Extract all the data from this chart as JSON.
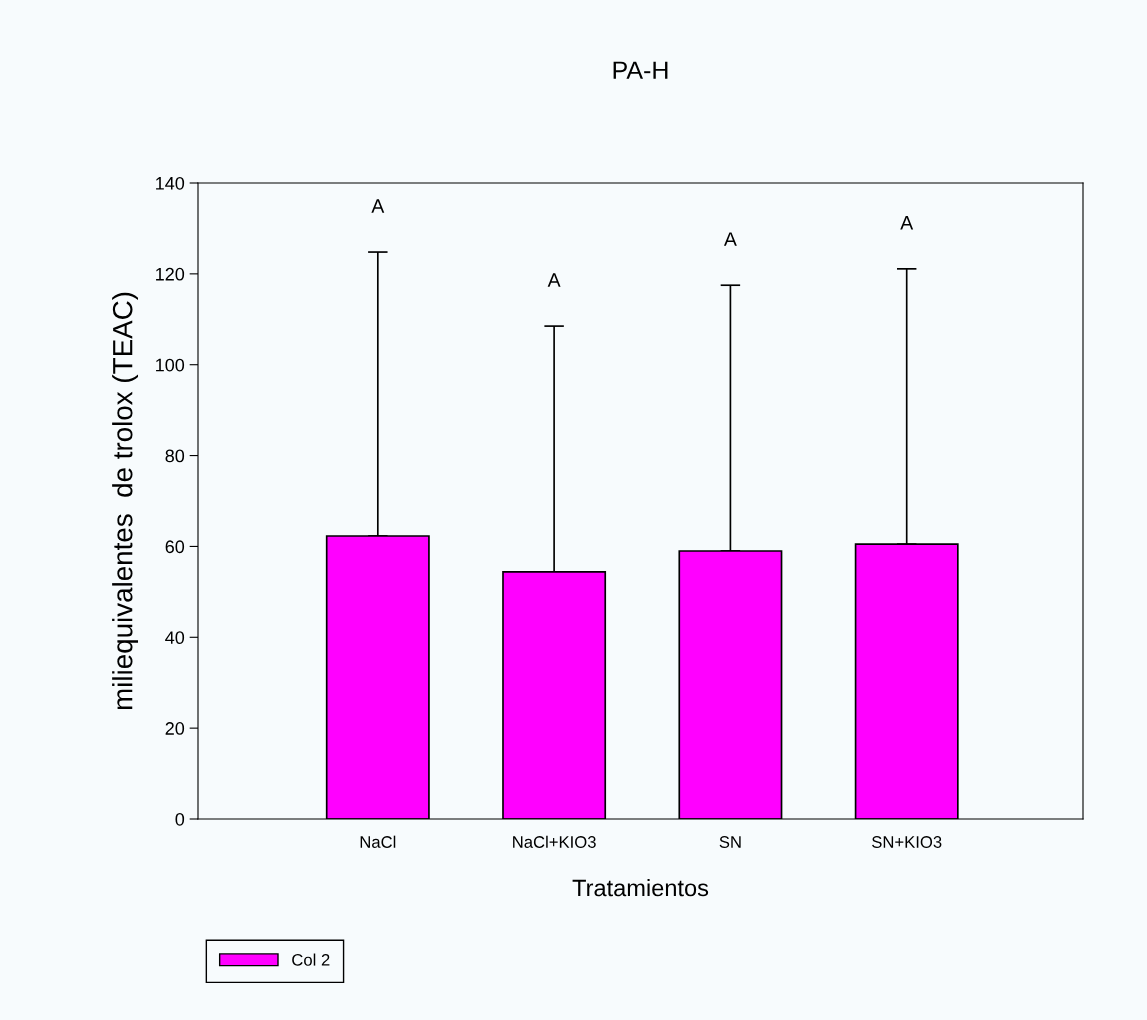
{
  "chart_data": {
    "type": "bar",
    "title": "PA-H",
    "xlabel": "Tratamientos",
    "ylabel": "miliequivalentes  de trolox (TEAC)",
    "categories": [
      "NaCl",
      "NaCl+KIO3",
      "SN",
      "SN+KIO3"
    ],
    "series": [
      {
        "name": "Col 2",
        "color": "#ff00ff",
        "values": [
          62.3,
          54.4,
          59.0,
          60.5
        ],
        "errors": [
          [
            62.3,
            124.8
          ],
          [
            54.4,
            108.5
          ],
          [
            59.0,
            117.5
          ],
          [
            60.5,
            121.1
          ]
        ]
      }
    ],
    "ylim": [
      0,
      140
    ],
    "yticks": [
      0,
      20,
      40,
      60,
      80,
      100,
      120,
      140
    ],
    "grid": false,
    "legend": "bottom left",
    "annotations": [
      "A",
      "A",
      "A",
      "A"
    ]
  }
}
